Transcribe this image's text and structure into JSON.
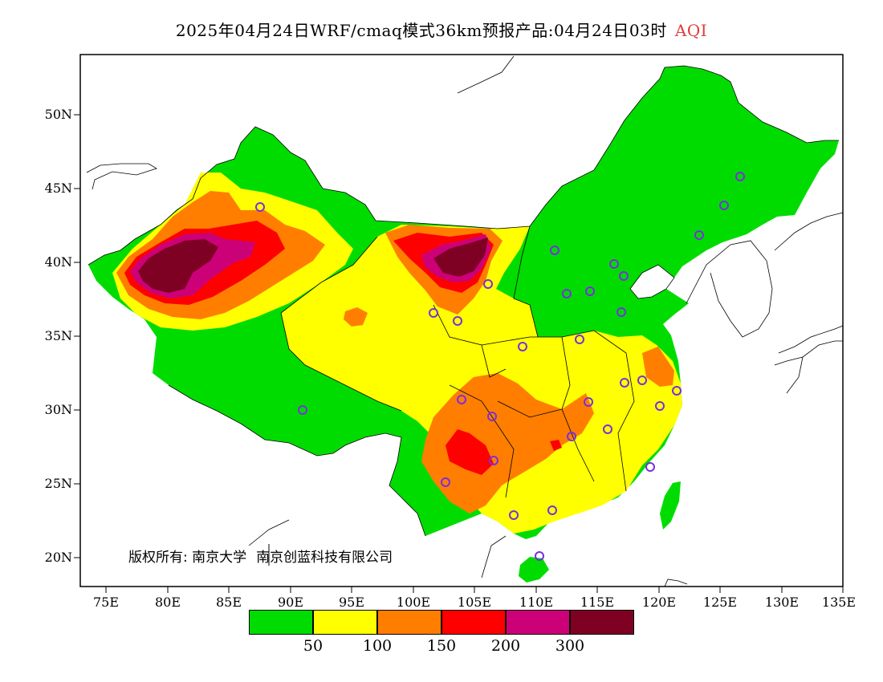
{
  "title": {
    "main": "2025年04月24日WRF/cmaq模式36km预报产品:04月24日03时",
    "variable": "AQI"
  },
  "axes": {
    "latitude_labels": [
      "50N",
      "45N",
      "40N",
      "35N",
      "30N",
      "25N",
      "20N"
    ],
    "longitude_labels": [
      "75E",
      "80E",
      "85E",
      "90E",
      "95E",
      "100E",
      "105E",
      "110E",
      "115E",
      "120E",
      "125E",
      "130E",
      "135E"
    ]
  },
  "copyright": {
    "prefix": "版权所有:",
    "org1": "南京大学",
    "org2": "南京创蓝科技有限公司"
  },
  "legend": {
    "colors": [
      "#00dc00",
      "#ffff00",
      "#ff7e00",
      "#ff0000",
      "#cc0077",
      "#7e0023"
    ],
    "labels": [
      "50",
      "100",
      "150",
      "200",
      "300"
    ]
  },
  "colors": {
    "good": "#00dc00",
    "moderate": "#ffff00",
    "unhealthy_sensitive": "#ff7e00",
    "unhealthy": "#ff0000",
    "very_unhealthy": "#cc0077",
    "hazardous": "#7e0023",
    "station_marker": "#7a2ee0"
  }
}
